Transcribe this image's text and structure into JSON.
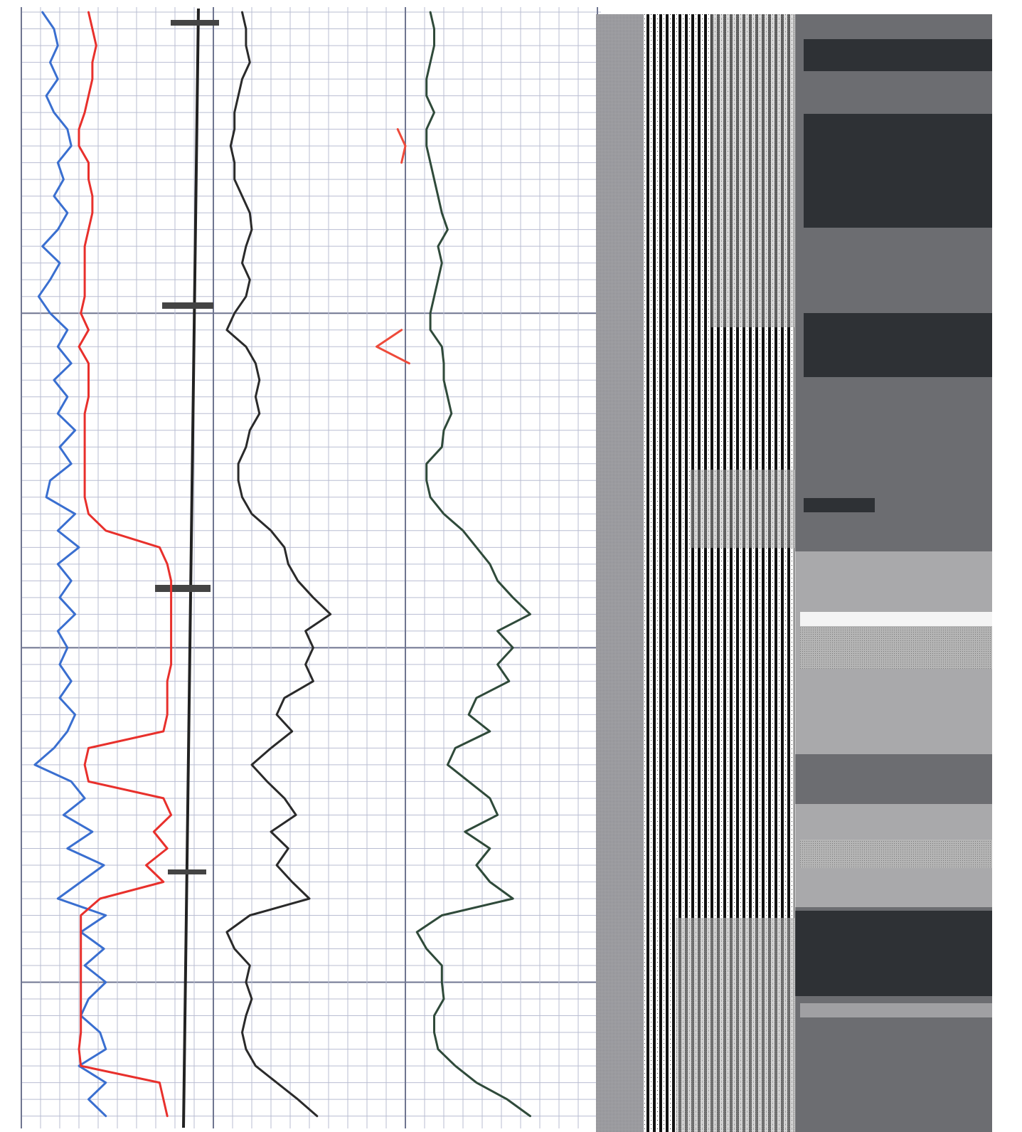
{
  "chart_data": {
    "type": "line",
    "orientation": "vertical",
    "x": [
      2,
      3,
      4,
      5,
      6,
      7,
      8,
      9,
      10,
      11,
      12,
      13,
      14,
      15,
      16,
      17,
      18,
      19,
      20,
      21,
      22,
      23,
      24,
      25,
      26,
      27,
      28,
      29,
      30,
      31,
      32,
      33,
      34,
      35,
      36,
      37,
      38,
      39,
      40,
      41,
      42,
      43,
      44,
      45,
      46,
      47,
      48,
      49,
      50,
      51,
      52,
      53,
      54,
      55,
      56,
      57,
      58,
      59,
      60,
      61,
      62,
      63,
      64,
      65,
      66,
      67,
      68
    ],
    "xlim": [
      1.7,
      68.4
    ],
    "xticks": [
      2,
      3,
      4,
      5,
      6,
      7,
      8,
      9,
      10,
      11,
      12,
      13,
      14,
      15,
      16,
      17,
      18,
      19,
      20,
      21,
      22,
      23,
      24,
      25,
      26,
      27,
      28,
      29,
      30,
      31,
      32,
      33,
      34,
      35,
      36,
      37,
      38,
      39,
      40,
      41,
      42,
      43,
      44,
      45,
      46,
      47,
      48,
      49,
      50,
      51,
      52,
      53,
      54,
      55,
      56,
      57,
      58,
      59,
      60,
      61,
      62,
      63,
      64,
      65,
      66,
      67,
      68
    ],
    "ylim": [
      0,
      30
    ],
    "yticks": [
      0,
      1,
      2,
      3,
      4,
      5,
      6,
      7,
      8,
      9,
      10,
      11,
      12,
      13,
      14,
      15,
      16,
      17,
      18,
      19,
      20,
      21,
      22,
      23,
      24,
      25,
      26,
      27,
      28,
      29,
      30
    ],
    "grid": true,
    "series": [
      {
        "color": "#3a6fd0",
        "values": [
          1.1,
          1.7,
          1.9,
          1.5,
          1.9,
          1.3,
          1.7,
          2.4,
          2.6,
          1.9,
          2.2,
          1.7,
          2.4,
          1.9,
          1.1,
          2.0,
          1.5,
          0.9,
          1.5,
          2.4,
          1.9,
          2.6,
          1.7,
          2.4,
          1.9,
          2.8,
          2.0,
          2.6,
          1.5,
          1.3,
          2.8,
          1.9,
          3.0,
          1.9,
          2.6,
          2.0,
          2.8,
          1.9,
          2.4,
          2.0,
          2.6,
          2.0,
          2.8,
          2.4,
          1.7,
          0.7,
          2.6,
          3.3,
          2.2,
          3.7,
          2.4,
          4.3,
          3.1,
          1.9,
          4.4,
          3.1,
          4.3,
          3.3,
          4.4,
          3.5,
          3.1,
          4.1,
          4.4,
          3.0,
          4.4,
          3.5,
          4.4
        ]
      },
      {
        "color": "#e8302c",
        "values": [
          3.5,
          3.7,
          3.9,
          3.7,
          3.7,
          3.5,
          3.3,
          3.0,
          3.0,
          3.5,
          3.5,
          3.7,
          3.7,
          3.5,
          3.3,
          3.3,
          3.3,
          3.3,
          3.1,
          3.5,
          3.0,
          3.5,
          3.5,
          3.5,
          3.3,
          3.3,
          3.3,
          3.3,
          3.3,
          3.3,
          3.5,
          4.4,
          7.2,
          7.6,
          7.8,
          7.8,
          7.8,
          7.8,
          7.8,
          7.8,
          7.6,
          7.6,
          7.6,
          7.4,
          3.5,
          3.3,
          3.5,
          7.4,
          7.8,
          6.9,
          7.6,
          6.5,
          7.4,
          4.1,
          3.1,
          3.1,
          3.1,
          3.1,
          3.1,
          3.1,
          3.1,
          3.1,
          3.0,
          3.1,
          7.2,
          7.4,
          7.6
        ]
      },
      {
        "color": "#2a2a2a",
        "values": [
          11.5,
          11.7,
          11.7,
          11.9,
          11.5,
          11.3,
          11.1,
          11.1,
          10.9,
          11.1,
          11.1,
          11.5,
          11.9,
          12.0,
          11.7,
          11.5,
          11.9,
          11.7,
          11.1,
          10.7,
          11.7,
          12.2,
          12.4,
          12.2,
          12.4,
          11.9,
          11.7,
          11.3,
          11.3,
          11.5,
          12.0,
          13.0,
          13.7,
          13.9,
          14.4,
          15.2,
          16.1,
          14.8,
          15.2,
          14.8,
          15.2,
          13.7,
          13.3,
          14.1,
          13.0,
          12.0,
          12.8,
          13.7,
          14.3,
          13.0,
          13.9,
          13.3,
          14.1,
          15.0,
          11.9,
          10.7,
          11.1,
          11.9,
          11.7,
          12.0,
          11.7,
          11.5,
          11.7,
          12.2,
          13.3,
          14.4,
          15.4
        ]
      },
      {
        "color": "#2f4a3a",
        "values": [
          21.3,
          21.5,
          21.5,
          21.3,
          21.1,
          21.1,
          21.5,
          21.1,
          21.1,
          21.3,
          21.5,
          21.7,
          21.9,
          22.2,
          21.7,
          21.9,
          21.7,
          21.5,
          21.3,
          21.3,
          21.9,
          22.0,
          22.0,
          22.2,
          22.4,
          22.0,
          21.9,
          21.1,
          21.1,
          21.3,
          22.0,
          23.0,
          23.7,
          24.4,
          24.8,
          25.6,
          26.5,
          24.8,
          25.6,
          24.8,
          25.4,
          23.7,
          23.3,
          24.4,
          22.6,
          22.2,
          23.3,
          24.4,
          24.8,
          23.1,
          24.4,
          23.7,
          24.4,
          25.6,
          21.9,
          20.6,
          21.1,
          21.9,
          21.9,
          22.0,
          21.5,
          21.5,
          21.7,
          22.6,
          23.7,
          25.3,
          26.5
        ]
      },
      {
        "color": "#ee4a3a",
        "values": [
          null,
          null,
          null,
          null,
          null,
          null,
          null,
          19.6,
          20.0,
          19.8,
          null,
          null,
          null,
          null,
          null,
          null,
          null,
          null,
          null,
          19.8,
          18.5,
          20.2,
          null,
          null,
          null,
          null,
          null,
          null,
          null,
          null,
          null,
          null,
          null,
          null,
          null,
          null,
          null,
          null,
          null,
          null,
          null,
          null,
          null,
          null,
          null,
          null,
          null,
          null,
          null,
          null,
          null,
          null,
          null,
          null,
          null,
          null,
          null,
          null,
          null,
          null,
          null,
          null,
          null,
          null,
          null,
          null,
          null
        ]
      }
    ]
  }
}
